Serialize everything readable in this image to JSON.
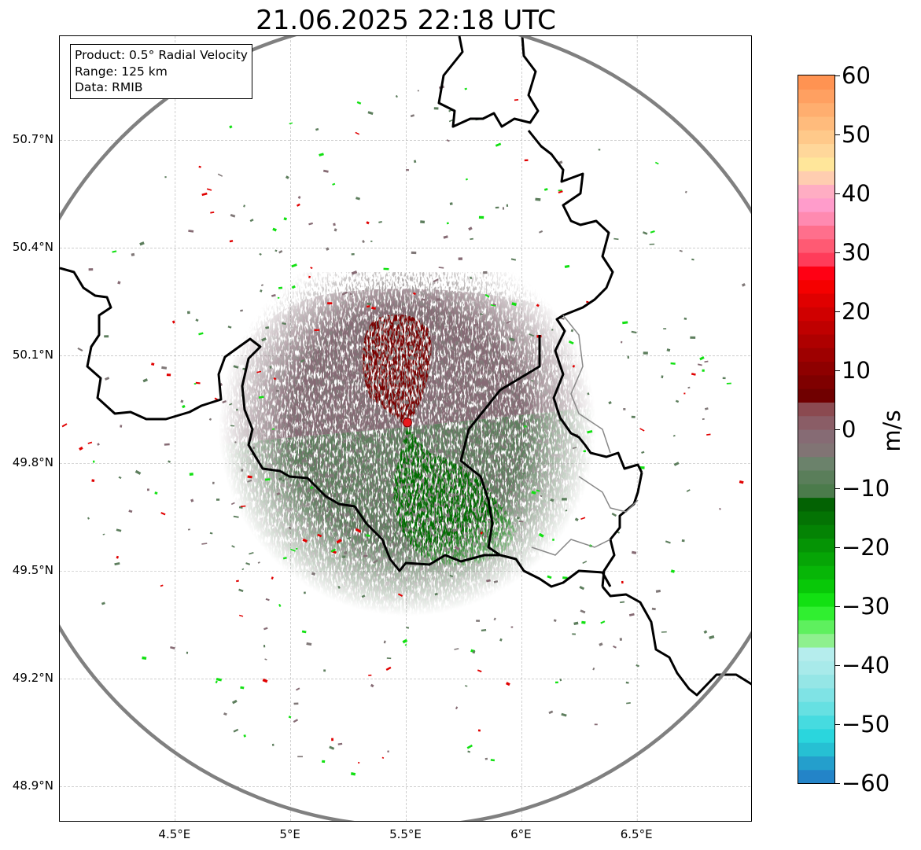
{
  "title": "21.06.2025 22:18 UTC",
  "info_box": {
    "product": "Product: 0.5° Radial Velocity",
    "range": "Range: 125 km",
    "data": "Data: RMIB"
  },
  "axes": {
    "lat_labels": [
      "50.7°N",
      "50.4°N",
      "50.1°N",
      "49.8°N",
      "49.5°N",
      "49.2°N",
      "48.9°N"
    ],
    "lon_labels": [
      "4.5°E",
      "5°E",
      "5.5°E",
      "6°E",
      "6.5°E"
    ],
    "lat_values": [
      50.7,
      50.4,
      50.1,
      49.8,
      49.5,
      49.2,
      48.9
    ],
    "lon_values": [
      4.5,
      5.0,
      5.5,
      6.0,
      6.5
    ],
    "lon_range": [
      4.0,
      7.0
    ],
    "lat_range": [
      48.8,
      50.99
    ],
    "grid": true
  },
  "radar": {
    "site_lon": 5.505,
    "site_lat": 49.914,
    "range_km": 125,
    "site_marker_color": "#e8191e",
    "range_ring_color": "#808080"
  },
  "colorbar": {
    "label": "m/s",
    "min": -60,
    "max": 60,
    "ticks": [
      "60",
      "50",
      "40",
      "30",
      "20",
      "10",
      "0",
      "−10",
      "−20",
      "−30",
      "−40",
      "−50",
      "−60"
    ],
    "colors_bottom_to_top": [
      "#2384c8",
      "#249fcc",
      "#26c0d3",
      "#2ad6dd",
      "#46dbe0",
      "#66e0e2",
      "#7fe3e5",
      "#95e6e6",
      "#a8eaea",
      "#b5eded",
      "#8ef08e",
      "#5ef05e",
      "#30ef30",
      "#12e012",
      "#08c808",
      "#07b607",
      "#06a506",
      "#059405",
      "#048304",
      "#047304",
      "#036203",
      "#4b7b4b",
      "#5a7e5a",
      "#6b826b",
      "#817474",
      "#866b74",
      "#8a5d66",
      "#8b4a50",
      "#700000",
      "#7f0000",
      "#8e0000",
      "#9e0000",
      "#ae0000",
      "#bf0000",
      "#d00000",
      "#e00000",
      "#f50000",
      "#ff0014",
      "#ff3c5a",
      "#ff5a73",
      "#ff6f8c",
      "#ff8ab0",
      "#ff9ccb",
      "#ffadc3",
      "#ffcdb0",
      "#ffe69a",
      "#ffd79a",
      "#ffc98a",
      "#ffbb7c",
      "#ffae6f",
      "#ffa061",
      "#ff9352"
    ]
  },
  "velocity_field": {
    "inbound_color_strong": "#006d00",
    "inbound_color_weak": "#5d7e5d",
    "outbound_color_strong": "#7a0000",
    "outbound_color_weak": "#866b74",
    "near_zero_color": "#807878"
  },
  "map_colors": {
    "border": "#000000",
    "province_border": "#888888",
    "grid": "#b0b0b0"
  }
}
